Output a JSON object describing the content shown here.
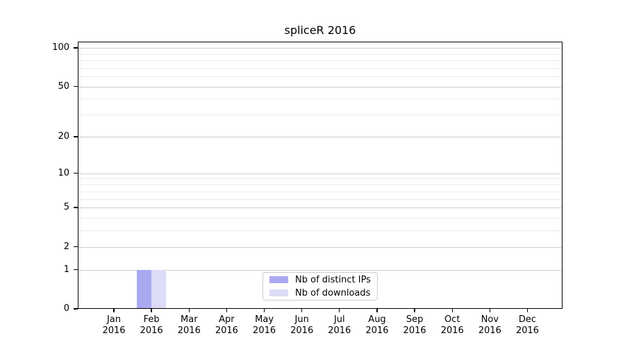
{
  "chart_data": {
    "type": "bar",
    "title": "spliceR 2016",
    "categories": [
      {
        "month": "Jan",
        "year": "2016"
      },
      {
        "month": "Feb",
        "year": "2016"
      },
      {
        "month": "Mar",
        "year": "2016"
      },
      {
        "month": "Apr",
        "year": "2016"
      },
      {
        "month": "May",
        "year": "2016"
      },
      {
        "month": "Jun",
        "year": "2016"
      },
      {
        "month": "Jul",
        "year": "2016"
      },
      {
        "month": "Aug",
        "year": "2016"
      },
      {
        "month": "Sep",
        "year": "2016"
      },
      {
        "month": "Oct",
        "year": "2016"
      },
      {
        "month": "Nov",
        "year": "2016"
      },
      {
        "month": "Dec",
        "year": "2016"
      }
    ],
    "series": [
      {
        "name": "Nb of distinct IPs",
        "color": "#a9a9f2",
        "values": [
          0,
          1,
          0,
          0,
          0,
          0,
          0,
          0,
          0,
          0,
          0,
          0
        ]
      },
      {
        "name": "Nb of downloads",
        "color": "#dcdcf8",
        "values": [
          0,
          1,
          0,
          0,
          0,
          0,
          0,
          0,
          0,
          0,
          0,
          0
        ]
      }
    ],
    "y_axis": {
      "scale": "log1p",
      "major_ticks": [
        0,
        1,
        2,
        5,
        10,
        20,
        50,
        100
      ],
      "minor_ticks": [
        3,
        4,
        6,
        7,
        8,
        9,
        30,
        40,
        60,
        70,
        80,
        90
      ],
      "ylim": [
        0,
        112
      ]
    },
    "xlabel": "",
    "ylabel": "",
    "grid": true,
    "legend": {
      "position": "lower center"
    },
    "colors": {
      "major_grid": "#cccccc",
      "minor_grid": "#ebebeb",
      "spine": "#000000",
      "text": "#000000"
    }
  }
}
